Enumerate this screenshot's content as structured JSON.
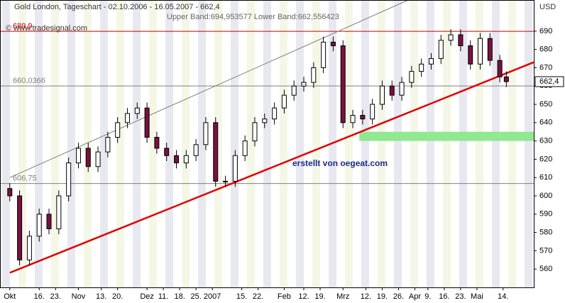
{
  "chart_data": {
    "type": "candlestick",
    "title": "Gold London, Tageschart - 02.10.2006 - 16.05.2007 - 662,4",
    "subtitle": "Upper Band:694,953577 Lower Band:662,556423",
    "source": "© www.tradesignal.com",
    "annotation": "erstellt von oegeat.com",
    "y_axis_label": "USD",
    "x": [
      0,
      3,
      6,
      9,
      12,
      15,
      18,
      21,
      24,
      27,
      30,
      33,
      36,
      39,
      42,
      45,
      48,
      51,
      54,
      57,
      60,
      63,
      66,
      69,
      72,
      75,
      78,
      81,
      84,
      87,
      90,
      93,
      96,
      99,
      102,
      105,
      108,
      111,
      114,
      117,
      120,
      123,
      126,
      129,
      132,
      135,
      138,
      141,
      144,
      147,
      150,
      152
    ],
    "open": [
      604,
      600,
      565,
      578,
      590,
      582,
      600,
      618,
      626,
      616,
      624,
      632,
      640,
      645,
      648,
      632,
      626,
      622,
      618,
      622,
      628,
      640,
      608,
      608,
      622,
      630,
      640,
      642,
      648,
      655,
      660,
      662,
      670,
      684,
      682,
      640,
      644,
      642,
      650,
      660,
      655,
      662,
      668,
      672,
      675,
      685,
      688,
      682,
      672,
      686,
      674,
      665
    ],
    "high": [
      607,
      603,
      581,
      593,
      593,
      603,
      621,
      629,
      629,
      627,
      635,
      643,
      648,
      651,
      651,
      635,
      629,
      625,
      625,
      631,
      643,
      643,
      611,
      625,
      633,
      643,
      645,
      651,
      658,
      663,
      665,
      673,
      687,
      687,
      685,
      647,
      647,
      653,
      663,
      663,
      665,
      671,
      675,
      678,
      688,
      691,
      691,
      685,
      689,
      689,
      677,
      668
    ],
    "low": [
      597,
      562,
      562,
      575,
      579,
      579,
      597,
      615,
      613,
      613,
      621,
      629,
      637,
      642,
      629,
      623,
      619,
      615,
      615,
      619,
      625,
      605,
      605,
      605,
      619,
      627,
      637,
      639,
      645,
      652,
      657,
      659,
      667,
      679,
      637,
      637,
      639,
      639,
      647,
      652,
      652,
      659,
      665,
      669,
      672,
      682,
      679,
      669,
      669,
      671,
      662,
      659.4
    ],
    "close": [
      600,
      565,
      578,
      590,
      582,
      600,
      618,
      626,
      616,
      624,
      632,
      640,
      645,
      648,
      632,
      626,
      622,
      618,
      622,
      628,
      640,
      608,
      608,
      622,
      630,
      640,
      642,
      648,
      655,
      660,
      662,
      670,
      684,
      682,
      640,
      644,
      642,
      650,
      660,
      655,
      662,
      668,
      672,
      675,
      685,
      688,
      682,
      672,
      686,
      674,
      665,
      662.4
    ],
    "up_color": "#ffffff",
    "down_color": "#7a1040",
    "xlim": [
      -3,
      160.4
    ],
    "ylim": [
      550,
      707
    ],
    "yticks": [
      560,
      570,
      580,
      590,
      600,
      610,
      620,
      630,
      640,
      650,
      660,
      670,
      680,
      690
    ],
    "xticks": [
      {
        "value": 0,
        "label": "Okt"
      },
      {
        "value": 9,
        "label": "16."
      },
      {
        "value": 14,
        "label": "23."
      },
      {
        "value": 21,
        "label": "Nov"
      },
      {
        "value": 28,
        "label": "13."
      },
      {
        "value": 33,
        "label": "20."
      },
      {
        "value": 42,
        "label": "Dez"
      },
      {
        "value": 47,
        "label": "11."
      },
      {
        "value": 52,
        "label": "18."
      },
      {
        "value": 57,
        "label": "25."
      },
      {
        "value": 62,
        "label": "2007"
      },
      {
        "value": 71,
        "label": "15."
      },
      {
        "value": 76,
        "label": "22."
      },
      {
        "value": 84,
        "label": "Feb"
      },
      {
        "value": 90,
        "label": "12."
      },
      {
        "value": 95,
        "label": "19."
      },
      {
        "value": 102,
        "label": "Mrz"
      },
      {
        "value": 109,
        "label": "12."
      },
      {
        "value": 114,
        "label": "19."
      },
      {
        "value": 119,
        "label": "26."
      },
      {
        "value": 124,
        "label": "Apr"
      },
      {
        "value": 128,
        "label": "9."
      },
      {
        "value": 133,
        "label": "16."
      },
      {
        "value": 138,
        "label": "23."
      },
      {
        "value": 143,
        "label": "Mai"
      },
      {
        "value": 151,
        "label": "14."
      }
    ],
    "levels": [
      {
        "value": 689.9,
        "label": "689,9",
        "color": "#cc0000"
      },
      {
        "value": 660.0366,
        "label": "660,0366",
        "color": "#808080"
      },
      {
        "value": 606.75,
        "label": "606,75",
        "color": "#808080"
      }
    ],
    "last": {
      "value": 662.4,
      "label": "662,4"
    },
    "trendlines": [
      {
        "x": [
          0,
          160.4
        ],
        "y": [
          558,
          673
        ],
        "color": "#e00000"
      },
      {
        "x": [
          0,
          122
        ],
        "y": [
          610,
          707
        ],
        "color": "#808080"
      }
    ],
    "zone": {
      "x": [
        107,
        160.4
      ],
      "y": [
        630,
        635
      ],
      "color": "#90e890"
    }
  }
}
